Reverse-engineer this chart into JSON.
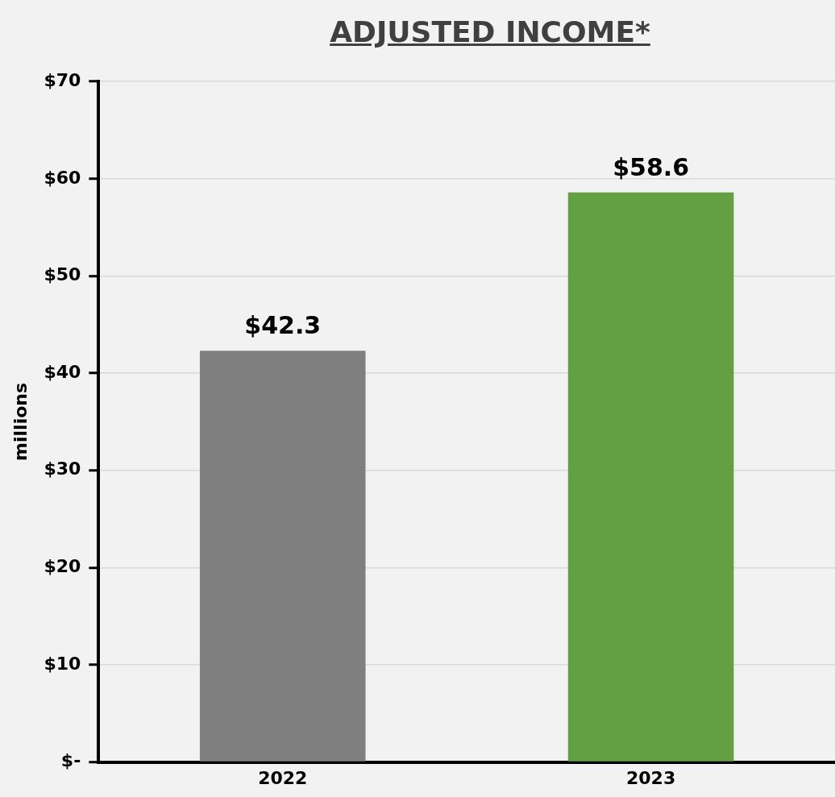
{
  "chart_data": {
    "type": "bar",
    "title": "ADJUSTED INCOME*",
    "ylabel": "millions",
    "categories": [
      "2022",
      "2023"
    ],
    "values": [
      42.3,
      58.6
    ],
    "colors": [
      "#7f7f7f",
      "#63a043"
    ],
    "value_labels": [
      "$42.3",
      "$58.6"
    ],
    "ylim": [
      0,
      70
    ],
    "yticks": [
      {
        "value": 0,
        "label": "$-"
      },
      {
        "value": 10,
        "label": "$10"
      },
      {
        "value": 20,
        "label": "$20"
      },
      {
        "value": 30,
        "label": "$30"
      },
      {
        "value": 40,
        "label": "$40"
      },
      {
        "value": 50,
        "label": "$50"
      },
      {
        "value": 60,
        "label": "$60"
      },
      {
        "value": 70,
        "label": "$70"
      }
    ],
    "grid": "y",
    "legend": false
  }
}
